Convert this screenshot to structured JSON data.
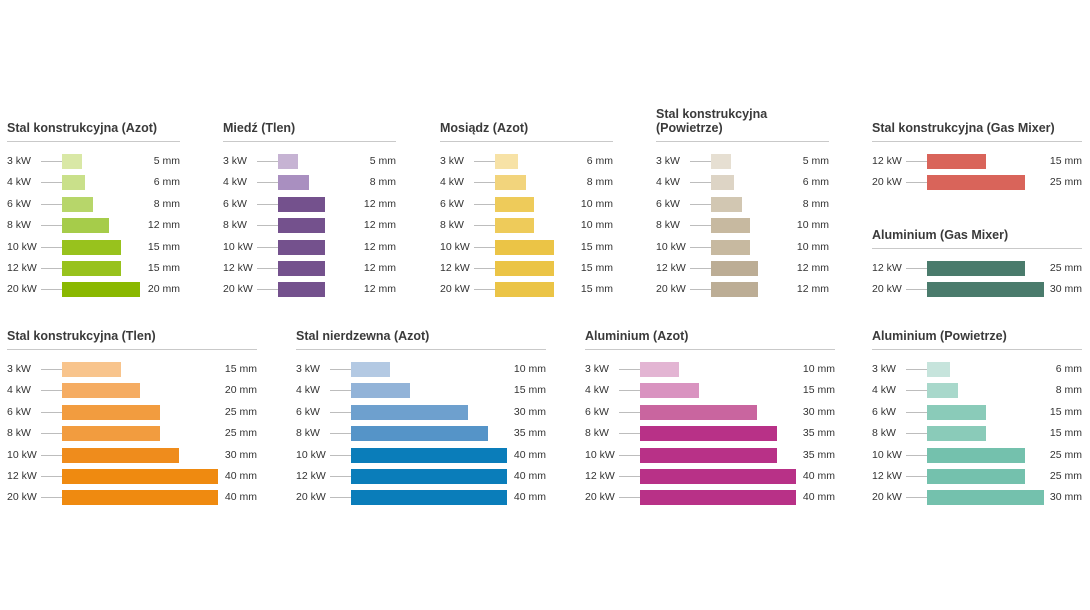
{
  "chart_data": [
    {
      "type": "bar",
      "title": "Stal konstrukcyjna (Azot)",
      "categories": [
        "3 kW",
        "4 kW",
        "6 kW",
        "8 kW",
        "10 kW",
        "12 kW",
        "20 kW"
      ],
      "values": [
        5,
        6,
        8,
        12,
        15,
        15,
        20
      ],
      "value_labels": [
        "5 mm",
        "6 mm",
        "8 mm",
        "12 mm",
        "15 mm",
        "15 mm",
        "20 mm"
      ],
      "colors": [
        "#d9e8a6",
        "#c9e08a",
        "#b7d66a",
        "#a6cc4a",
        "#98c21d",
        "#98c21d",
        "#8ab800"
      ]
    },
    {
      "type": "bar",
      "title": "Miedź (Tlen)",
      "categories": [
        "3 kW",
        "4 kW",
        "6 kW",
        "8 kW",
        "10 kW",
        "12 kW",
        "20 kW"
      ],
      "values": [
        5,
        8,
        12,
        12,
        12,
        12,
        12
      ],
      "value_labels": [
        "5 mm",
        "8 mm",
        "12 mm",
        "12 mm",
        "12 mm",
        "12 mm",
        "12 mm"
      ],
      "colors": [
        "#c6b3d3",
        "#a98fc0",
        "#74518d",
        "#74518d",
        "#74518d",
        "#74518d",
        "#74518d"
      ]
    },
    {
      "type": "bar",
      "title": "Mosiądz (Azot)",
      "categories": [
        "3 kW",
        "4 kW",
        "6 kW",
        "8 kW",
        "10 kW",
        "12 kW",
        "20 kW"
      ],
      "values": [
        6,
        8,
        10,
        10,
        15,
        15,
        15
      ],
      "value_labels": [
        "6 mm",
        "8 mm",
        "10 mm",
        "10 mm",
        "15 mm",
        "15 mm",
        "15 mm"
      ],
      "colors": [
        "#f7e2a6",
        "#f2d47c",
        "#eecb5a",
        "#eecb5a",
        "#ebc446",
        "#ebc446",
        "#ebc446"
      ]
    },
    {
      "type": "bar",
      "title": "Stal konstrukcyjna\n(Powietrze)",
      "categories": [
        "3 kW",
        "4 kW",
        "6 kW",
        "8 kW",
        "10 kW",
        "12 kW",
        "20 kW"
      ],
      "values": [
        5,
        6,
        8,
        10,
        10,
        12,
        12
      ],
      "value_labels": [
        "5 mm",
        "6 mm",
        "8 mm",
        "10 mm",
        "10 mm",
        "12 mm",
        "12 mm"
      ],
      "colors": [
        "#e6dfd2",
        "#ddd4c5",
        "#d2c7b2",
        "#c7b9a0",
        "#c7b9a0",
        "#bcad95",
        "#bcad95"
      ]
    },
    {
      "type": "bar",
      "title": "Stal konstrukcyjna (Gas Mixer)",
      "categories": [
        "12 kW",
        "20 kW"
      ],
      "values": [
        15,
        25
      ],
      "value_labels": [
        "15 mm",
        "25 mm"
      ],
      "colors": [
        "#d9645a",
        "#d9645a"
      ]
    },
    {
      "type": "bar",
      "title": "Aluminium (Gas Mixer)",
      "categories": [
        "12 kW",
        "20 kW"
      ],
      "values": [
        25,
        30
      ],
      "value_labels": [
        "25 mm",
        "30 mm"
      ],
      "colors": [
        "#4a7b6c",
        "#4a7b6c"
      ]
    },
    {
      "type": "bar",
      "title": "Stal konstrukcyjna (Tlen)",
      "categories": [
        "3 kW",
        "4 kW",
        "6 kW",
        "8 kW",
        "10 kW",
        "12 kW",
        "20 kW"
      ],
      "values": [
        15,
        20,
        25,
        25,
        30,
        40,
        40
      ],
      "value_labels": [
        "15 mm",
        "20 mm",
        "25 mm",
        "25 mm",
        "30 mm",
        "40 mm",
        "40 mm"
      ],
      "colors": [
        "#f8c48c",
        "#f5ac62",
        "#f29c3f",
        "#f29c3f",
        "#ef8c1c",
        "#ef8a10",
        "#ef8a10"
      ]
    },
    {
      "type": "bar",
      "title": "Stal nierdzewna (Azot)",
      "categories": [
        "3 kW",
        "4 kW",
        "6 kW",
        "8 kW",
        "10 kW",
        "12 kW",
        "20 kW"
      ],
      "values": [
        10,
        15,
        30,
        35,
        40,
        40,
        40
      ],
      "value_labels": [
        "10 mm",
        "15 mm",
        "30 mm",
        "35 mm",
        "40 mm",
        "40 mm",
        "40 mm"
      ],
      "colors": [
        "#b3c9e3",
        "#92b3d8",
        "#6ea0ce",
        "#5594c8",
        "#0a7dba",
        "#0a7dba",
        "#0a7dba"
      ]
    },
    {
      "type": "bar",
      "title": "Aluminium (Azot)",
      "categories": [
        "3 kW",
        "4 kW",
        "6 kW",
        "8 kW",
        "10 kW",
        "12 kW",
        "20 kW"
      ],
      "values": [
        10,
        15,
        30,
        35,
        35,
        40,
        40
      ],
      "value_labels": [
        "10 mm",
        "15 mm",
        "30 mm",
        "35 mm",
        "35 mm",
        "40 mm",
        "40 mm"
      ],
      "colors": [
        "#e3b5d3",
        "#d993c0",
        "#c9659f",
        "#b83187",
        "#b83187",
        "#b83187",
        "#b83187"
      ]
    },
    {
      "type": "bar",
      "title": "Aluminium (Powietrze)",
      "categories": [
        "3 kW",
        "4 kW",
        "6 kW",
        "8 kW",
        "10 kW",
        "12 kW",
        "20 kW"
      ],
      "values": [
        6,
        8,
        15,
        15,
        25,
        25,
        30
      ],
      "value_labels": [
        "6 mm",
        "8 mm",
        "15 mm",
        "15 mm",
        "25 mm",
        "25 mm",
        "30 mm"
      ],
      "colors": [
        "#c6e4dc",
        "#a8d8cb",
        "#8acbb9",
        "#8acbb9",
        "#74c1ad",
        "#74c1ad",
        "#74c1ad"
      ]
    }
  ]
}
